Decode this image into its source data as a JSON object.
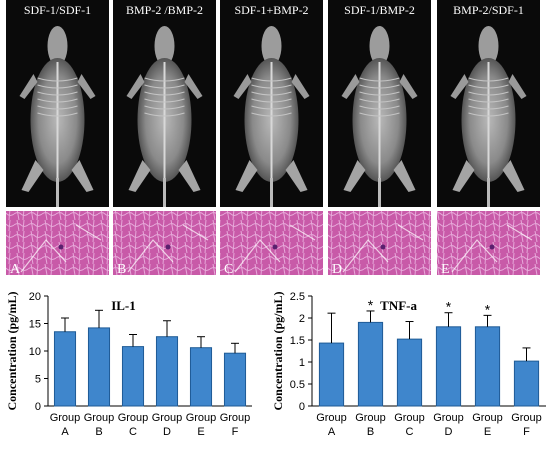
{
  "xray_panels": [
    {
      "title": "SDF-1/SDF-1",
      "letter": "A"
    },
    {
      "title": "BMP-2 /BMP-2",
      "letter": "B"
    },
    {
      "title": "SDF-1+BMP-2",
      "letter": "C"
    },
    {
      "title": "SDF-1/BMP-2",
      "letter": "D"
    },
    {
      "title": "BMP-2/SDF-1",
      "letter": "E"
    }
  ],
  "colors": {
    "bar_fill": "#3f86cc",
    "bar_stroke": "#1f5b96",
    "tissue_base": "#c85aa8",
    "tissue_light": "#e7a9da",
    "xray_bg": "#0a0a0a"
  },
  "chart_data": [
    {
      "type": "bar",
      "title": "IL-1",
      "ylabel": "Concentration (pg/mL)",
      "xlabel": "",
      "ylim": [
        0,
        20
      ],
      "yticks": [
        0,
        5,
        10,
        15,
        20
      ],
      "categories": [
        "Group A",
        "Group B",
        "Group C",
        "Group D",
        "Group E",
        "Group F"
      ],
      "category_lines": [
        [
          "Group",
          "A"
        ],
        [
          "Group",
          "B"
        ],
        [
          "Group",
          "C"
        ],
        [
          "Group",
          "D"
        ],
        [
          "Group",
          "E"
        ],
        [
          "Group",
          "F"
        ]
      ],
      "values": [
        13.5,
        14.2,
        10.8,
        12.6,
        10.6,
        9.6
      ],
      "errors": [
        2.5,
        3.2,
        2.2,
        2.9,
        2.0,
        1.8
      ],
      "significance": [
        "",
        "",
        "",
        "",
        "",
        ""
      ],
      "grid": false
    },
    {
      "type": "bar",
      "title": "TNF-a",
      "ylabel": "Concentration (pg/mL)",
      "xlabel": "",
      "ylim": [
        0,
        2.5
      ],
      "yticks": [
        0,
        0.5,
        1,
        1.5,
        2,
        2.5
      ],
      "categories": [
        "Group A",
        "Group B",
        "Group C",
        "Group D",
        "Group E",
        "Group F"
      ],
      "category_lines": [
        [
          "Group",
          "A"
        ],
        [
          "Group",
          "B"
        ],
        [
          "Group",
          "C"
        ],
        [
          "Group",
          "D"
        ],
        [
          "Group",
          "E"
        ],
        [
          "Group",
          "F"
        ]
      ],
      "values": [
        1.43,
        1.9,
        1.52,
        1.8,
        1.8,
        1.02
      ],
      "errors": [
        0.68,
        0.26,
        0.4,
        0.32,
        0.26,
        0.3
      ],
      "significance": [
        "",
        "*",
        "",
        "*",
        "*",
        ""
      ],
      "grid": false
    }
  ]
}
